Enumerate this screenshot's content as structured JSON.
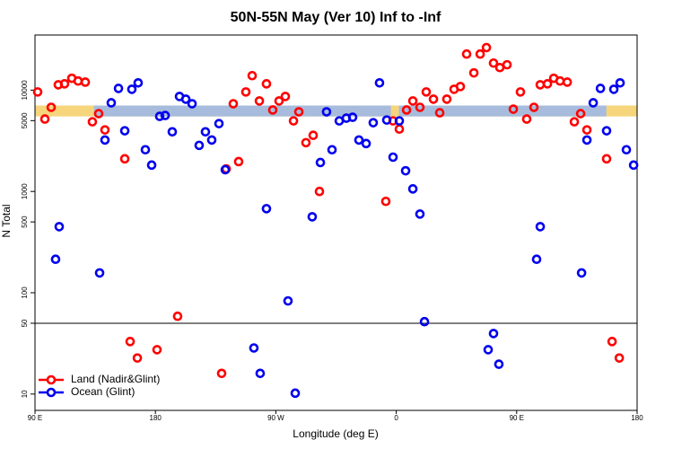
{
  "chart_data": {
    "type": "scatter",
    "title": "50N-55N May (Ver 10)   Inf to -Inf",
    "x_label": "Longitude (deg E)",
    "y_label": "N Total",
    "xlim": [
      90,
      540
    ],
    "ylim": [
      6.9,
      35000
    ],
    "log_y": true,
    "xticks": [
      {
        "value": 90,
        "label": "90 E"
      },
      {
        "value": 180,
        "label": "180"
      },
      {
        "value": 270,
        "label": "90 W"
      },
      {
        "value": 360,
        "label": "0"
      },
      {
        "value": 450,
        "label": "90 E"
      },
      {
        "value": 540,
        "label": "180"
      }
    ],
    "yticks": [
      10,
      50,
      100,
      500,
      1000,
      5000,
      10000
    ],
    "hline": 50,
    "band": {
      "ylim": [
        5500,
        7050
      ],
      "segments": [
        {
          "color": "#f6d57c",
          "xlim": [
            90,
            540
          ]
        },
        {
          "color": "#a7bcdc",
          "xlim": [
            134,
            356
          ]
        },
        {
          "color": "#a7bcdc",
          "xlim": [
            362,
            517
          ]
        }
      ]
    },
    "legend": "bottom-left",
    "series": [
      {
        "name": "Land (Nadir&Glint)",
        "color": "#ff0000",
        "x": [
          92.0,
          97.4,
          102.1,
          107.4,
          112.1,
          117.5,
          122.2,
          127.6,
          132.9,
          137.6,
          142.3,
          157.1,
          161.1,
          166.5,
          181.2,
          196.6,
          229.5,
          232.9,
          242.2,
          238.2,
          247.6,
          252.3,
          257.7,
          263.0,
          267.7,
          272.4,
          277.1,
          283.2,
          287.2,
          292.5,
          297.9,
          302.6,
          352.2,
          357.6,
          362.3,
          367.7,
          372.4,
          377.7,
          382.4,
          387.8,
          392.5,
          397.8,
          403.2,
          407.9,
          412.6,
          418.0,
          422.7,
          427.4,
          432.7,
          437.4,
          442.8,
          447.5,
          452.8,
          457.5,
          462.9,
          467.6,
          473.0,
          477.7,
          482.4,
          487.8,
          493.1,
          497.8,
          502.5,
          517.2,
          521.3,
          526.7
        ],
        "y": [
          9600,
          5180,
          6770,
          11300,
          11550,
          13100,
          12300,
          12000,
          4870,
          5860,
          4050,
          2100,
          33,
          22.7,
          27.4,
          58.6,
          16,
          1670,
          1970,
          7340,
          9600,
          13900,
          7820,
          11550,
          6370,
          7820,
          8660,
          4970,
          6110,
          3030,
          3580,
          1000,
          798,
          4970,
          4130,
          6370,
          7820,
          6770,
          9600,
          8150,
          5980,
          8150,
          10200,
          10850,
          22700,
          14800,
          22700,
          26300,
          18500,
          16700,
          17800,
          6490,
          9600,
          5180,
          6770,
          11300,
          11550,
          13100,
          12300,
          12000,
          4870,
          5860,
          4050,
          2100,
          33,
          22.7
        ]
      },
      {
        "name": "Ocean (Glint)",
        "color": "#0000ee",
        "x": [
          105.4,
          108.1,
          138.3,
          142.3,
          147.0,
          152.4,
          157.1,
          162.4,
          167.1,
          172.5,
          177.2,
          183.2,
          187.3,
          192.6,
          198.0,
          202.7,
          207.4,
          212.7,
          217.4,
          222.1,
          227.5,
          232.2,
          253.6,
          258.3,
          263.0,
          279.1,
          284.5,
          297.2,
          303.3,
          307.9,
          312.0,
          317.4,
          322.7,
          327.4,
          332.1,
          337.5,
          342.8,
          347.5,
          352.9,
          357.6,
          362.3,
          367.0,
          372.4,
          377.7,
          381.1,
          428.7,
          432.7,
          436.7,
          464.9,
          467.6,
          498.5,
          502.5,
          507.2,
          512.6,
          517.2,
          522.6,
          527.3,
          532.0,
          537.4
        ],
        "y": [
          214,
          449,
          157,
          3220,
          7500,
          10400,
          3970,
          10200,
          11800,
          2580,
          1820,
          5510,
          5620,
          3880,
          8660,
          8150,
          7340,
          2850,
          3880,
          3220,
          4670,
          1640,
          28.5,
          16,
          676,
          83,
          10.2,
          562,
          1930,
          6110,
          2580,
          4970,
          5290,
          5400,
          3220,
          2970,
          4770,
          11800,
          5070,
          2180,
          4970,
          1600,
          1060,
          598,
          51.8,
          27.4,
          39.6,
          19.7,
          214,
          449,
          157,
          3220,
          7500,
          10400,
          3970,
          10200,
          11800,
          2580,
          1820
        ]
      }
    ]
  }
}
